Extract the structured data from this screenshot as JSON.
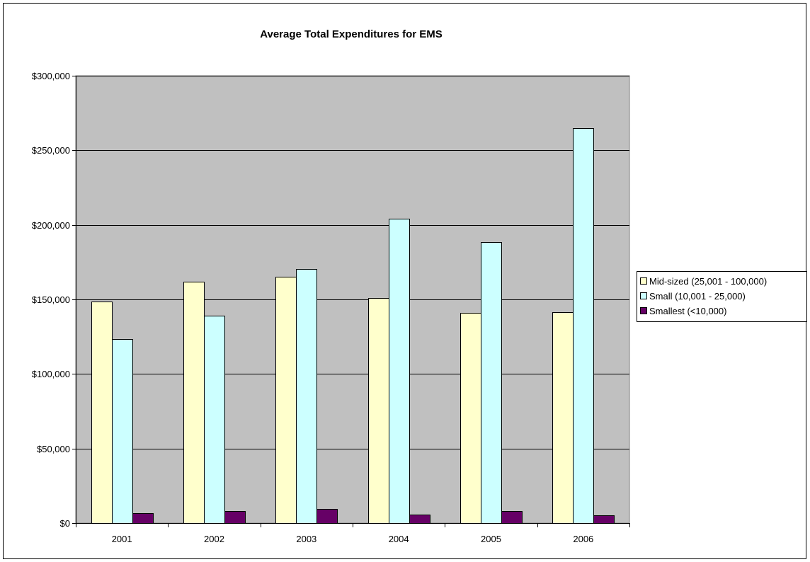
{
  "chart_data": {
    "type": "bar",
    "title": "Average Total Expenditures for EMS",
    "xlabel": "",
    "ylabel": "",
    "categories": [
      "2001",
      "2002",
      "2003",
      "2004",
      "2005",
      "2006"
    ],
    "series": [
      {
        "name": "Mid-sized (25,001 - 100,000)",
        "color": "#FFFFCC",
        "values": [
          148500,
          162000,
          165000,
          151000,
          141000,
          141500
        ]
      },
      {
        "name": "Small (10,001 - 25,000)",
        "color": "#CCFFFF",
        "values": [
          123500,
          139000,
          170500,
          204000,
          188500,
          265000
        ]
      },
      {
        "name": "Smallest (<10,000)",
        "color": "#660066",
        "values": [
          6500,
          8000,
          9500,
          5500,
          8000,
          5000
        ]
      }
    ],
    "yticks": [
      "$0",
      "$50,000",
      "$100,000",
      "$150,000",
      "$200,000",
      "$250,000",
      "$300,000"
    ],
    "ylim": [
      0,
      300000
    ],
    "ytick_step": 50000,
    "grid": true,
    "plot_background": "#C0C0C0",
    "legend_position": "right"
  }
}
